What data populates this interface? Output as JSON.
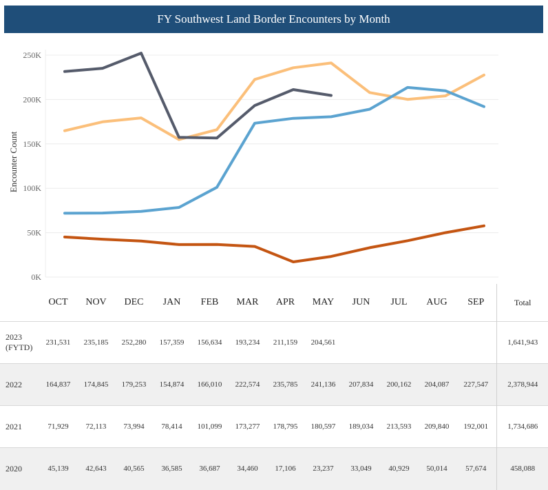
{
  "title": "FY Southwest Land Border Encounters by Month",
  "colors": {
    "title_bg": "#1f4e79",
    "2023 (FYTD)": "#555b6b",
    "2022": "#fbbf7a",
    "2021": "#5ba3d0",
    "2020": "#c45512"
  },
  "chart_data": {
    "type": "line",
    "title": "FY Southwest Land Border Encounters by Month",
    "xlabel": "",
    "ylabel": "Encounter Count",
    "ylim": [
      0,
      250000
    ],
    "yticks": [
      0,
      50000,
      100000,
      150000,
      200000,
      250000
    ],
    "ytick_labels": [
      "0K",
      "50K",
      "100K",
      "150K",
      "200K",
      "250K"
    ],
    "categories": [
      "OCT",
      "NOV",
      "DEC",
      "JAN",
      "FEB",
      "MAR",
      "APR",
      "MAY",
      "JUN",
      "JUL",
      "AUG",
      "SEP"
    ],
    "series": [
      {
        "name": "2023 (FYTD)",
        "values": [
          231531,
          235185,
          252280,
          157359,
          156634,
          193234,
          211159,
          204561,
          null,
          null,
          null,
          null
        ]
      },
      {
        "name": "2022",
        "values": [
          164837,
          174845,
          179253,
          154874,
          166010,
          222574,
          235785,
          241136,
          207834,
          200162,
          204087,
          227547
        ]
      },
      {
        "name": "2021",
        "values": [
          71929,
          72113,
          73994,
          78414,
          101099,
          173277,
          178795,
          180597,
          189034,
          213593,
          209840,
          192001
        ]
      },
      {
        "name": "2020",
        "values": [
          45139,
          42643,
          40565,
          36585,
          36687,
          34460,
          17106,
          23237,
          33049,
          40929,
          50014,
          57674
        ]
      }
    ]
  },
  "table": {
    "total_header": "Total",
    "rows": [
      {
        "year": "2023 (FYTD)",
        "cells": [
          "231,531",
          "235,185",
          "252,280",
          "157,359",
          "156,634",
          "193,234",
          "211,159",
          "204,561",
          "",
          "",
          "",
          ""
        ],
        "total": "1,641,943"
      },
      {
        "year": "2022",
        "cells": [
          "164,837",
          "174,845",
          "179,253",
          "154,874",
          "166,010",
          "222,574",
          "235,785",
          "241,136",
          "207,834",
          "200,162",
          "204,087",
          "227,547"
        ],
        "total": "2,378,944"
      },
      {
        "year": "2021",
        "cells": [
          "71,929",
          "72,113",
          "73,994",
          "78,414",
          "101,099",
          "173,277",
          "178,795",
          "180,597",
          "189,034",
          "213,593",
          "209,840",
          "192,001"
        ],
        "total": "1,734,686"
      },
      {
        "year": "2020",
        "cells": [
          "45,139",
          "42,643",
          "40,565",
          "36,585",
          "36,687",
          "34,460",
          "17,106",
          "23,237",
          "33,049",
          "40,929",
          "50,014",
          "57,674"
        ],
        "total": "458,088"
      }
    ]
  }
}
